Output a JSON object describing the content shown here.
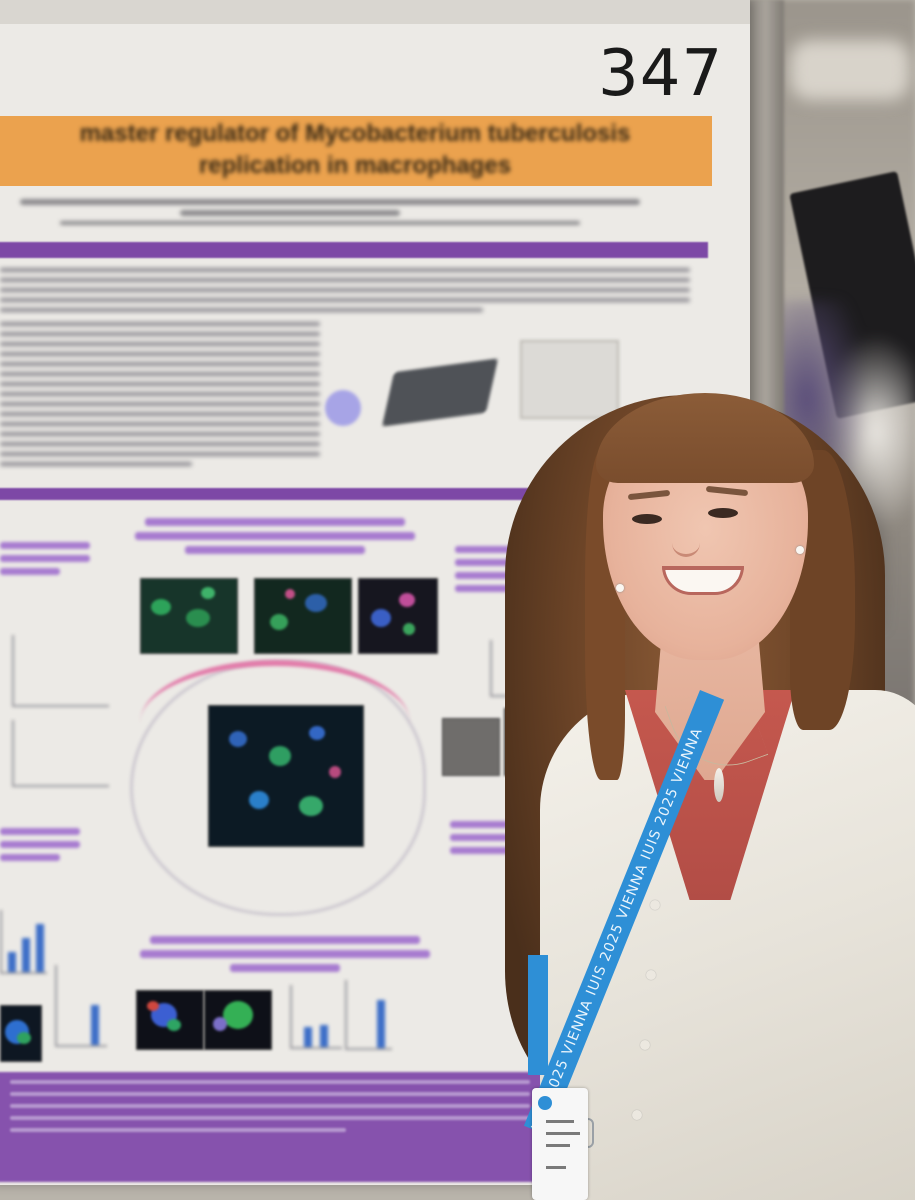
{
  "photo": {
    "poster_number": "347",
    "poster_title_line1": "master regulator of Mycobacterium tuberculosis",
    "poster_title_line2": "replication in macrophages",
    "lanyard_text": "IUIS 2025 VIENNA   IUIS 2025 VIENNA   IUIS 2025 VIENNA"
  },
  "colors": {
    "poster_title_band": "#eba24e",
    "poster_purple": "#7d48a6",
    "lanyard_blue": "#2e8fd6",
    "cardigan": "#efebe3",
    "hair": "#6c4427"
  }
}
